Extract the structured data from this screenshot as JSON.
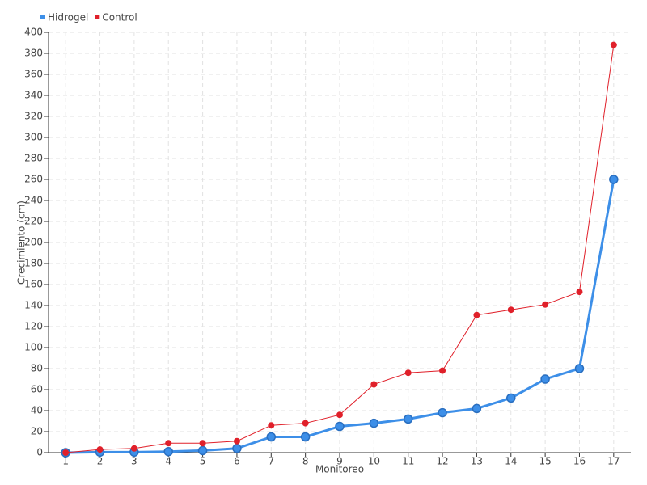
{
  "chart_data": {
    "type": "line",
    "x_label": "Monitoreo",
    "y_label": "Crecimiento (cm)",
    "categories": [
      "1",
      "2",
      "3",
      "4",
      "5",
      "6",
      "7",
      "8",
      "9",
      "10",
      "11",
      "12",
      "13",
      "14",
      "15",
      "16",
      "17"
    ],
    "series": [
      {
        "name": "Hidrogel",
        "color": "#3d8fe8",
        "values": [
          0,
          0.5,
          0.5,
          1,
          2,
          4,
          15,
          15,
          25,
          28,
          32,
          38,
          42,
          52,
          70,
          80,
          260
        ]
      },
      {
        "name": "Control",
        "color": "#e0202a",
        "values": [
          0,
          3,
          4,
          9,
          9,
          11,
          26,
          28,
          36,
          65,
          76,
          78,
          131,
          136,
          141,
          153,
          388
        ]
      }
    ],
    "ylim": [
      0,
      400
    ],
    "yticks": [
      0,
      20,
      40,
      60,
      80,
      100,
      120,
      140,
      160,
      180,
      200,
      220,
      240,
      260,
      280,
      300,
      320,
      340,
      360,
      380,
      400
    ],
    "grid": true,
    "legend": "top-left"
  }
}
